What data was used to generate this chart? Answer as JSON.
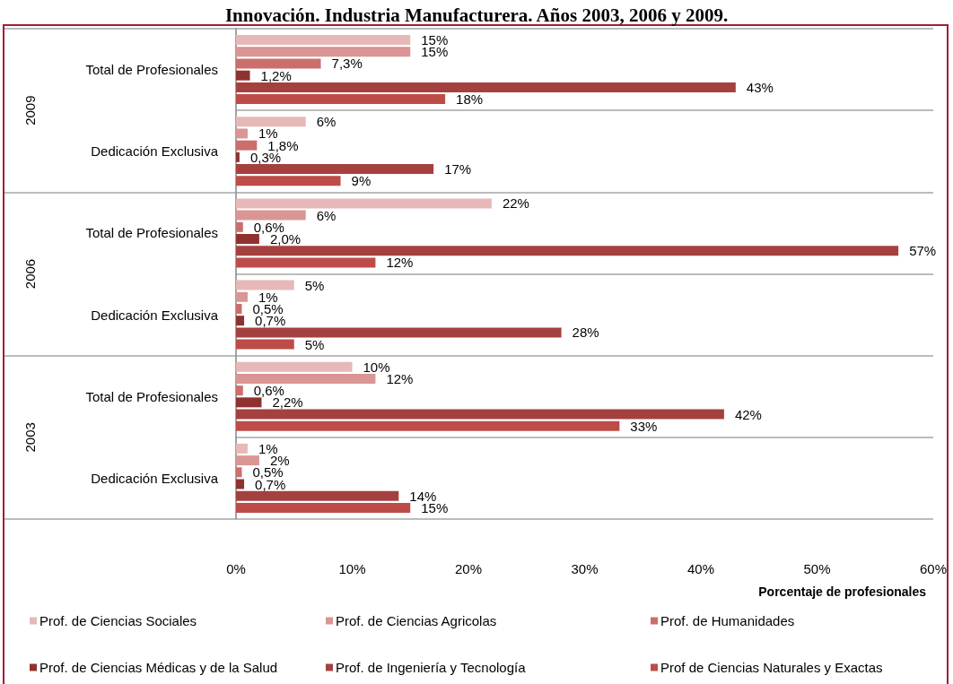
{
  "chart_data": {
    "type": "bar",
    "orientation": "horizontal",
    "title": "Innovación. Industria Manufacturera. Años 2003, 2006 y 2009.",
    "xlabel": "Porcentaje de profesionales",
    "categories": [
      "Total de Profesionales",
      "Dedicación Exclusiva",
      "Total de Profesionales",
      "Dedicación Exclusiva",
      "Total de Profesionales",
      "Dedicación Exclusiva"
    ],
    "annotations": [
      "2009",
      "2006",
      "2003"
    ],
    "series": [
      {
        "name": "Prof. de Ciencias Sociales",
        "color": "#e6b9b8",
        "values": [
          15,
          6,
          22,
          5,
          10,
          1
        ],
        "value_labels": [
          "15%",
          "6%",
          "22%",
          "5%",
          "10%",
          "1%"
        ]
      },
      {
        "name": "Prof. de Ciencias Agricolas",
        "color": "#d99694",
        "values": [
          15,
          1,
          6,
          1,
          12,
          2
        ],
        "value_labels": [
          "15%",
          "1%",
          "6%",
          "1%",
          "12%",
          "2%"
        ]
      },
      {
        "name": "Prof. de Humanidades",
        "color": "#cb6e6c",
        "values": [
          7.3,
          1.8,
          0.6,
          0.5,
          0.6,
          0.5
        ],
        "value_labels": [
          "7,3%",
          "1,8%",
          "0,6%",
          "0,5%",
          "0,6%",
          "0,5%"
        ]
      },
      {
        "name": "Prof. de Ciencias Médicas y de la Salud",
        "color": "#8e3230",
        "values": [
          1.2,
          0.3,
          2.0,
          0.7,
          2.2,
          0.7
        ],
        "value_labels": [
          "1,2%",
          "0,3%",
          "2,0%",
          "0,7%",
          "2,2%",
          "0,7%"
        ]
      },
      {
        "name": "Prof. de Ingeniería y Tecnología",
        "color": "#a4413f",
        "values": [
          43,
          17,
          57,
          28,
          42,
          14
        ],
        "value_labels": [
          "43%",
          "17%",
          "57%",
          "28%",
          "42%",
          "14%"
        ]
      },
      {
        "name": "Prof de Ciencias Naturales y Exactas",
        "color": "#bd4c49",
        "values": [
          18,
          9,
          12,
          5,
          33,
          15
        ],
        "value_labels": [
          "18%",
          "9%",
          "12%",
          "5%",
          "33%",
          "15%"
        ]
      }
    ],
    "xlim": [
      0,
      60
    ],
    "xticks": [
      {
        "value": 0,
        "label": "0%"
      },
      {
        "value": 10,
        "label": "10%"
      },
      {
        "value": 20,
        "label": "20%"
      },
      {
        "value": 30,
        "label": "30%"
      },
      {
        "value": 40,
        "label": "40%"
      },
      {
        "value": 50,
        "label": "50%"
      },
      {
        "value": 60,
        "label": "60%"
      }
    ],
    "grid": "y",
    "legend": "bottom"
  }
}
